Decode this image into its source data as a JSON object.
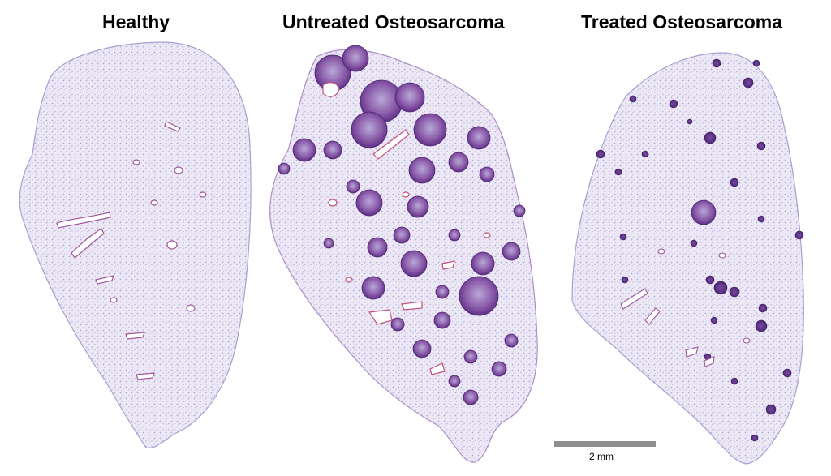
{
  "panels": [
    {
      "label": "Healthy"
    },
    {
      "label": "Untreated Osteosarcoma"
    },
    {
      "label": "Treated Osteosarcoma"
    }
  ],
  "scale_bar": {
    "label": "2 mm"
  },
  "colors": {
    "background": "#ffffff",
    "tissue_fill": "#e9e4f3",
    "tissue_stipple": "#7f76bd",
    "lesion": "#7a4a9c",
    "lesion_dark": "#5b2f82",
    "vessel_edge": "#a0569a",
    "scale_bar": "#8e8e8e"
  }
}
